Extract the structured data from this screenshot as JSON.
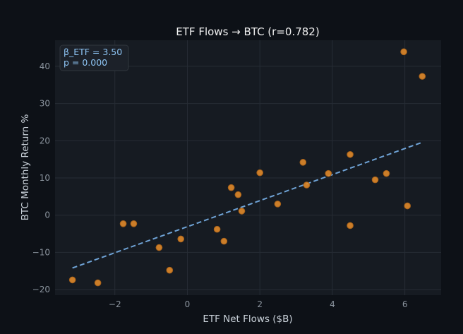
{
  "chart_data": {
    "type": "scatter",
    "title": "ETF Flows → BTC (r=0.782)",
    "xlabel": "ETF Net Flows ($B)",
    "ylabel": "BTC Monthly Return %",
    "xlim": [
      -3.65,
      7.0
    ],
    "ylim": [
      -21.5,
      47
    ],
    "xticks": [
      -2,
      0,
      2,
      4,
      6
    ],
    "yticks": [
      -20,
      -10,
      0,
      10,
      20,
      30,
      40
    ],
    "grid": true,
    "annotation": [
      "β_ETF = 3.50",
      "p = 0.000"
    ],
    "annotation_position": "top-left",
    "points": [
      [
        -3.17,
        -17.4
      ],
      [
        -2.47,
        -18.2
      ],
      [
        -1.77,
        -2.3
      ],
      [
        -1.48,
        -2.3
      ],
      [
        -0.78,
        -8.7
      ],
      [
        -0.49,
        -14.8
      ],
      [
        -0.18,
        -6.4
      ],
      [
        0.82,
        -3.8
      ],
      [
        1.01,
        -7.0
      ],
      [
        1.21,
        7.4
      ],
      [
        1.4,
        5.5
      ],
      [
        1.5,
        1.1
      ],
      [
        2.0,
        11.4
      ],
      [
        2.49,
        3.0
      ],
      [
        3.19,
        14.2
      ],
      [
        3.29,
        8.1
      ],
      [
        3.89,
        11.2
      ],
      [
        4.49,
        16.3
      ],
      [
        4.49,
        -2.8
      ],
      [
        5.18,
        9.5
      ],
      [
        5.49,
        11.2
      ],
      [
        5.97,
        43.9
      ],
      [
        6.07,
        2.5
      ],
      [
        6.48,
        37.3
      ]
    ],
    "fit_line": {
      "slope": 3.5,
      "intercept": -3.1,
      "x_range": [
        -3.17,
        6.5
      ]
    },
    "colors": {
      "points": "#e08a2a",
      "fit": "#6fa3d6",
      "background": "#0d1117",
      "plot_bg": "#161b22"
    }
  }
}
